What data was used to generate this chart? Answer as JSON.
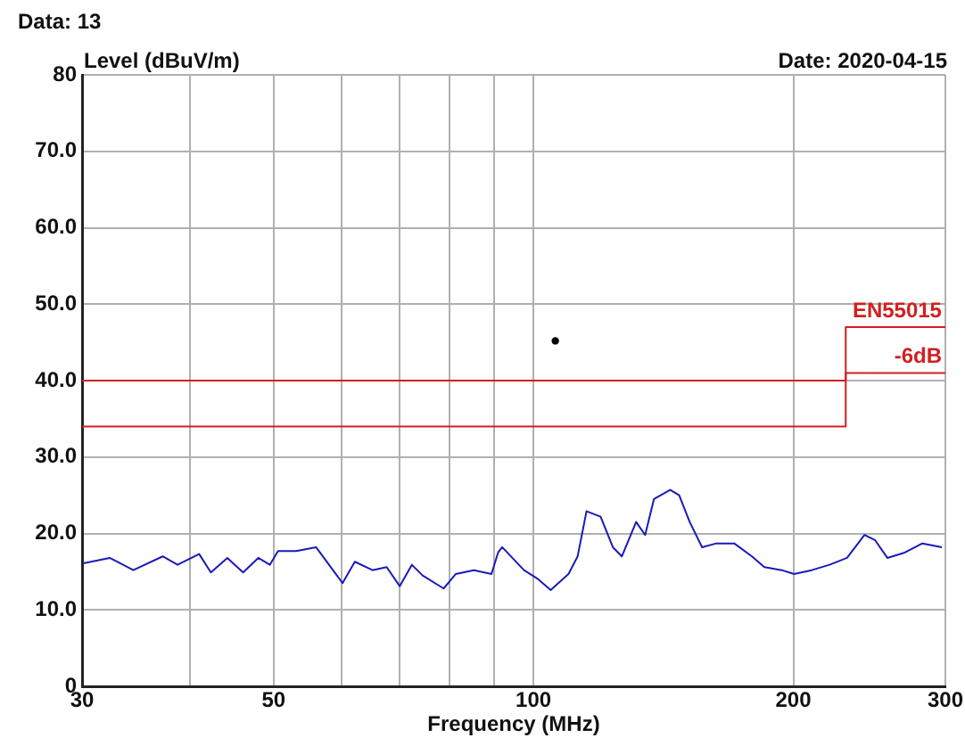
{
  "chart_data": {
    "type": "line",
    "xlabel": "Frequency (MHz)",
    "ylabel": "Level (dBuV/m)",
    "annotations": [
      "Data: 13",
      "Date: 2020-04-15"
    ],
    "log": "x",
    "grid": true,
    "legend": false,
    "xlim": [
      30,
      300
    ],
    "xticks": [
      30,
      {
        "value": 40,
        "label": null
      },
      50,
      {
        "value": 60,
        "label": null
      },
      {
        "value": 70,
        "label": null
      },
      {
        "value": 80,
        "label": null
      },
      {
        "value": 90,
        "label": null
      },
      100,
      200,
      300
    ],
    "ylim": [
      0,
      80
    ],
    "yticks": [
      0,
      {
        "value": 10,
        "label": "10.0"
      },
      {
        "value": 20,
        "label": "20.0"
      },
      {
        "value": 30,
        "label": "30.0"
      },
      {
        "value": 40,
        "label": "40.0"
      },
      {
        "value": 50,
        "label": "50.0"
      },
      {
        "value": 60,
        "label": "60.0"
      },
      {
        "value": 70,
        "label": "70.0"
      },
      80
    ],
    "series": [
      {
        "color": "#1a1ab8",
        "marker": "none",
        "line_style": "solid",
        "x": [
          30.1,
          32.3,
          34.4,
          37.2,
          38.7,
          41.0,
          42.3,
          44.2,
          46.1,
          48.0,
          49.5,
          50.6,
          53.1,
          56.0,
          58.4,
          60.1,
          62.1,
          65.1,
          67.6,
          70.0,
          72.3,
          74.4,
          78.7,
          81.3,
          85.3,
          89.4,
          91.0,
          92.0,
          97.5,
          101.3,
          104.7,
          109.8,
          112.5,
          115.2,
          119.6,
          123.6,
          126.6,
          131.5,
          134.7,
          137.9,
          144.0,
          147.5,
          151.7,
          156.8,
          162.9,
          170.8,
          179.1,
          185.1,
          193.9,
          200.4,
          210.1,
          220.3,
          230.8,
          241.8,
          248.8,
          257.0,
          269.2,
          282.2,
          297.2
        ],
        "values": [
          16.1,
          16.8,
          15.2,
          17.0,
          15.9,
          17.3,
          14.9,
          16.8,
          14.9,
          16.8,
          15.9,
          17.7,
          17.7,
          18.2,
          15.4,
          13.5,
          16.3,
          15.2,
          15.6,
          13.1,
          15.9,
          14.5,
          12.8,
          14.7,
          15.2,
          14.7,
          17.5,
          18.2,
          15.2,
          14.0,
          12.6,
          14.7,
          17.0,
          22.9,
          22.2,
          18.2,
          17.0,
          21.5,
          19.8,
          24.5,
          25.7,
          25.0,
          21.5,
          18.2,
          18.7,
          18.7,
          17.0,
          15.6,
          15.2,
          14.7,
          15.2,
          15.9,
          16.8,
          19.8,
          19.1,
          16.8,
          17.5,
          18.7,
          18.2
        ]
      },
      {
        "name": "EN55015",
        "color": "#d22020",
        "marker": "none",
        "line_style": "solid",
        "x": [
          30,
          230,
          230,
          300
        ],
        "values": [
          40,
          40,
          47,
          47
        ]
      },
      {
        "name": "-6dB",
        "color": "#d22020",
        "marker": "none",
        "line_style": "solid",
        "x": [
          30,
          230,
          230,
          300
        ],
        "values": [
          34,
          34,
          41,
          41
        ]
      },
      {
        "type": "scatter",
        "color": "#000000",
        "marker": "circle",
        "x": [
          106
        ],
        "values": [
          45.2
        ]
      }
    ]
  }
}
